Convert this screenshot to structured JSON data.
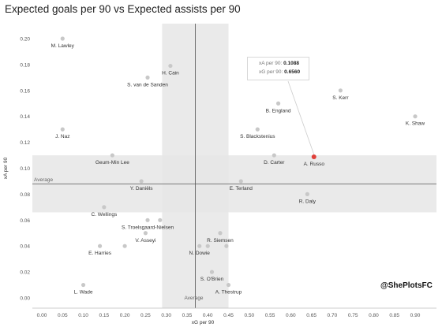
{
  "title": "Expected goals per 90 vs Expected assists per 90",
  "watermark": "@ShePlotsFC",
  "tooltip": {
    "xa_label": "xA per 90:",
    "xa_value": "0.1088",
    "xg_label": "xG per 90:",
    "xg_value": "0.6560"
  },
  "colors": {
    "point": "#c8c8c8",
    "highlight": "#e0403a",
    "band": "#e6e6e6",
    "avg_line": "#555555"
  },
  "chart_data": {
    "type": "scatter",
    "title": "Expected goals per 90 vs Expected assists per 90",
    "xlabel": "xG per 90",
    "ylabel": "xA per 90",
    "xlim": [
      0.0,
      0.9
    ],
    "ylim": [
      0.0,
      0.2
    ],
    "xticks": [
      "0.00",
      "0.05",
      "0.10",
      "0.15",
      "0.20",
      "0.25",
      "0.30",
      "0.35",
      "0.40",
      "0.45",
      "0.50",
      "0.55",
      "0.60",
      "0.65",
      "0.70",
      "0.75",
      "0.80",
      "0.85",
      "0.90"
    ],
    "yticks": [
      "0.00",
      "0.02",
      "0.04",
      "0.06",
      "0.08",
      "0.10",
      "0.12",
      "0.14",
      "0.16",
      "0.18",
      "0.20"
    ],
    "grid": false,
    "average_x": 0.37,
    "average_y": 0.088,
    "average_label": "Average",
    "x_band": [
      0.29,
      0.45
    ],
    "y_band": [
      0.066,
      0.11
    ],
    "highlighted": "A. Russo",
    "points": [
      {
        "name": "M. Lawley",
        "x": 0.05,
        "y": 0.2
      },
      {
        "name": "H. Cain",
        "x": 0.31,
        "y": 0.179
      },
      {
        "name": "S. van de Sanden",
        "x": 0.255,
        "y": 0.17
      },
      {
        "name": "S. Kerr",
        "x": 0.72,
        "y": 0.16
      },
      {
        "name": "B. England",
        "x": 0.57,
        "y": 0.15
      },
      {
        "name": "K. Shaw",
        "x": 0.9,
        "y": 0.14
      },
      {
        "name": "J. Naz",
        "x": 0.05,
        "y": 0.13
      },
      {
        "name": "S. Blackstenius",
        "x": 0.52,
        "y": 0.13
      },
      {
        "name": "Geum-Min Lee",
        "x": 0.17,
        "y": 0.11
      },
      {
        "name": "D. Carter",
        "x": 0.56,
        "y": 0.11
      },
      {
        "name": "A. Russo",
        "x": 0.656,
        "y": 0.1088
      },
      {
        "name": "Y. Daniëls",
        "x": 0.24,
        "y": 0.09
      },
      {
        "name": "E. Terland",
        "x": 0.48,
        "y": 0.09
      },
      {
        "name": "R. Daly",
        "x": 0.64,
        "y": 0.08
      },
      {
        "name": "C. Wellings",
        "x": 0.15,
        "y": 0.07
      },
      {
        "name": "S. Troelsgaard-Nielsen",
        "x": 0.255,
        "y": 0.06
      },
      {
        "name": "",
        "x": 0.285,
        "y": 0.06
      },
      {
        "name": "V. Asseyi",
        "x": 0.25,
        "y": 0.05
      },
      {
        "name": "R. Siemsen",
        "x": 0.43,
        "y": 0.05
      },
      {
        "name": "E. Harries",
        "x": 0.14,
        "y": 0.04
      },
      {
        "name": "",
        "x": 0.2,
        "y": 0.04
      },
      {
        "name": "N. Dowie",
        "x": 0.38,
        "y": 0.04
      },
      {
        "name": "",
        "x": 0.4,
        "y": 0.04
      },
      {
        "name": "",
        "x": 0.445,
        "y": 0.04
      },
      {
        "name": "S. O'Brien",
        "x": 0.41,
        "y": 0.02
      },
      {
        "name": "L. Wade",
        "x": 0.1,
        "y": 0.01
      },
      {
        "name": "A. Thestrup",
        "x": 0.45,
        "y": 0.01
      }
    ]
  }
}
